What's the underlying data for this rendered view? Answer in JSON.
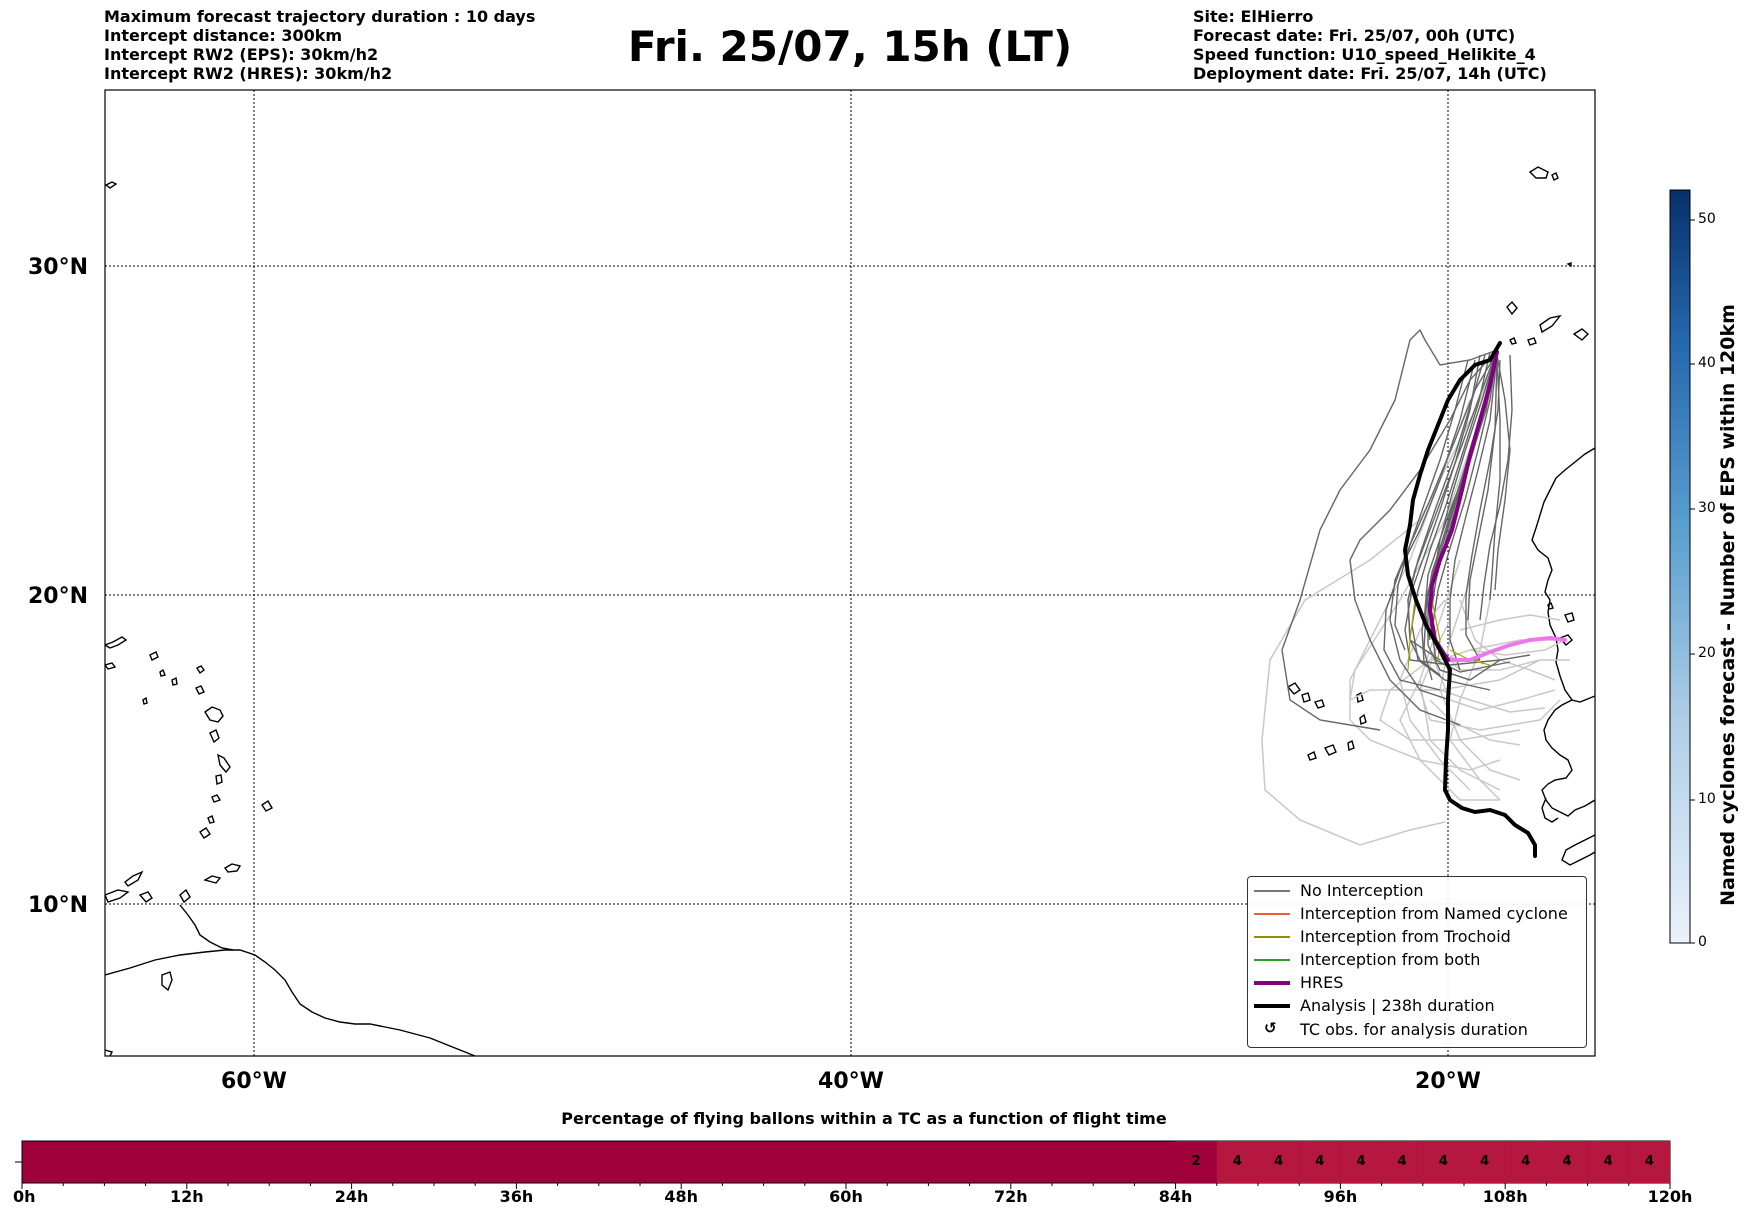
{
  "header": {
    "left_lines": [
      "Maximum forecast trajectory duration : 10 days",
      "Intercept distance: 300km",
      "Intercept RW2 (EPS):  30km/h2",
      "Intercept RW2 (HRES): 30km/h2"
    ],
    "title": "Fri. 25/07, 15h (LT)",
    "right_lines": [
      "Site: ElHierro",
      "Forecast date: Fri. 25/07, 00h (UTC)",
      "Speed function: U10_speed_Helikite_4",
      "Deployment date: Fri. 25/07, 14h (UTC)"
    ]
  },
  "map": {
    "lat_labels": [
      "30°N",
      "20°N",
      "10°N"
    ],
    "lon_labels": [
      "60°W",
      "40°W",
      "20°W"
    ],
    "colors": {
      "no_interception": "#666666",
      "no_interception_light": "#c8c8c8",
      "hres": "#800080",
      "hres_light": "#ee77ee",
      "analysis": "#000000",
      "trochoid": "#a6a600"
    }
  },
  "legend": {
    "items": [
      {
        "label": "No Interception",
        "color": "#777777"
      },
      {
        "label": "Interception from Named cyclone",
        "color": "#e8602a"
      },
      {
        "label": "Interception from Trochoid",
        "color": "#8f8f00"
      },
      {
        "label": "Interception from both",
        "color": "#2ca02c"
      },
      {
        "label": "HRES",
        "color": "#800080"
      },
      {
        "label": "Analysis | 238h duration",
        "color": "#000000"
      },
      {
        "label": "TC obs. for analysis duration",
        "icon": "cyclone-icon"
      }
    ]
  },
  "colorbar": {
    "title": "Named cyclones forecast - Number of EPS within 120km",
    "ticks": [
      "0",
      "10",
      "20",
      "30",
      "40",
      "50"
    ],
    "range": [
      0,
      52
    ],
    "color_low": "#eaf2fb",
    "color_high": "#08306b"
  },
  "timeline": {
    "title": "Percentage of flying ballons within a TC as a function of flight time",
    "hour_labels": [
      "0h",
      "12h",
      "24h",
      "36h",
      "48h",
      "60h",
      "72h",
      "84h",
      "96h",
      "108h",
      "120h"
    ],
    "max_hours": 120,
    "segment_values": [
      "2",
      "4",
      "4",
      "4",
      "4",
      "4",
      "4",
      "4",
      "4",
      "4",
      "4",
      "4"
    ],
    "segment_start_hour": 84,
    "segment_step_hours": 3,
    "base_color": "#a0003a",
    "highlight_color": "#b5173f"
  }
}
